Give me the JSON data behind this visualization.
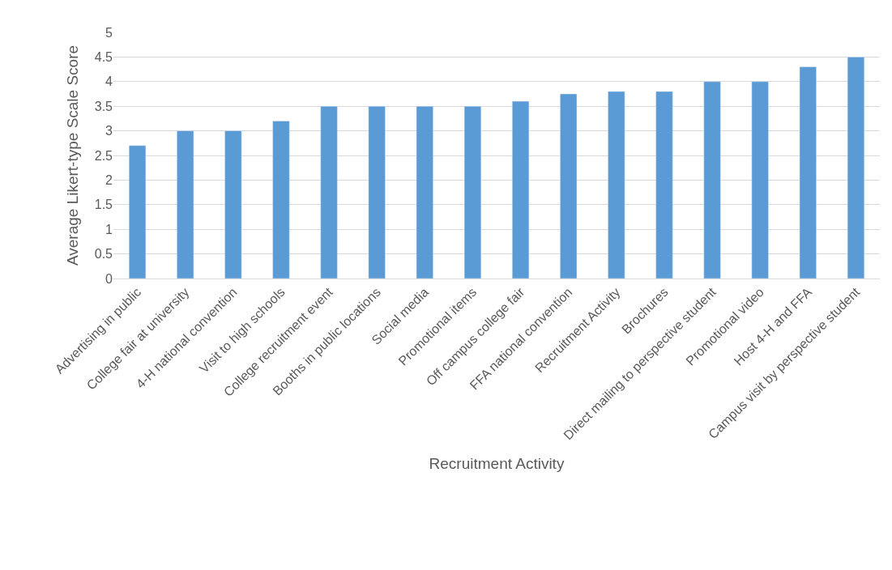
{
  "chart_data": {
    "type": "bar",
    "xlabel": "Recruitment Activity",
    "ylabel": "Average Likert-type Scale Score",
    "categories": [
      "Advertising in public",
      "College fair at university",
      "4-H national convention",
      "Visit to high schools",
      "College recruitment event",
      "Booths in public locations",
      "Social media",
      "Promotional items",
      "Off campus college fair",
      "FFA national convention",
      "Recruitment Activity",
      "Brochures",
      "Direct mailing to perspective student",
      "Promotional video",
      "Host 4-H and FFA",
      "Campus visit by perspective student"
    ],
    "values": [
      2.7,
      3,
      3,
      3.2,
      3.5,
      3.5,
      3.5,
      3.5,
      3.6,
      3.75,
      3.8,
      3.8,
      4,
      4,
      4.3,
      4.5
    ],
    "color": "#5b9bd5",
    "ylim": [
      0,
      5
    ],
    "yticks": [
      0,
      0.5,
      1,
      1.5,
      2,
      2.5,
      3,
      3.5,
      4,
      4.5,
      5
    ],
    "grid": "y"
  }
}
